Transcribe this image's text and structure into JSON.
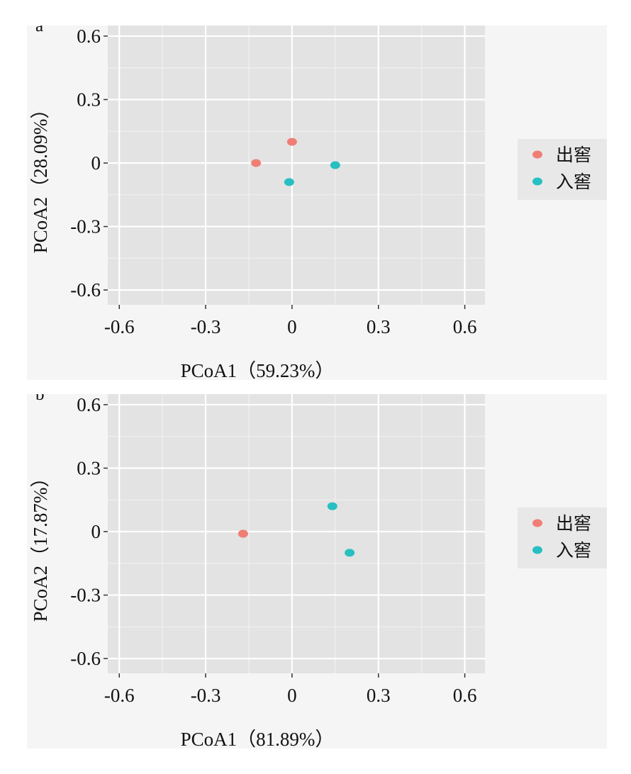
{
  "colors": {
    "out": "#f07e75",
    "in": "#27bfc2"
  },
  "chart_data": [
    {
      "type": "scatter",
      "panel_label": "a",
      "xlabel": "PCoA1（59.23%）",
      "ylabel": "PCoA2（28.09%）",
      "xlim": [
        -0.64,
        0.67
      ],
      "ylim": [
        -0.67,
        0.65
      ],
      "xticks": [
        -0.6,
        -0.3,
        0,
        0.3,
        0.6
      ],
      "yticks": [
        -0.6,
        -0.3,
        0,
        0.3,
        0.6
      ],
      "xtick_labels": [
        "-0.6",
        "-0.3",
        "0",
        "0.3",
        "0.6"
      ],
      "ytick_labels": [
        "-0.6",
        "-0.3",
        "0",
        "0.3",
        "0.6"
      ],
      "legend": [
        "出窖",
        "入窖"
      ],
      "series": [
        {
          "name": "出窖",
          "color": "#f07e75",
          "points": [
            [
              0.0,
              0.1
            ],
            [
              -0.125,
              0.0
            ]
          ]
        },
        {
          "name": "入窖",
          "color": "#27bfc2",
          "points": [
            [
              0.15,
              -0.01
            ],
            [
              -0.01,
              -0.09
            ]
          ]
        }
      ]
    },
    {
      "type": "scatter",
      "panel_label": "b",
      "xlabel": "PCoA1（81.89%）",
      "ylabel": "PCoA2（17.87%）",
      "xlim": [
        -0.64,
        0.67
      ],
      "ylim": [
        -0.67,
        0.65
      ],
      "xticks": [
        -0.6,
        -0.3,
        0,
        0.3,
        0.6
      ],
      "yticks": [
        -0.6,
        -0.3,
        0,
        0.3,
        0.6
      ],
      "xtick_labels": [
        "-0.6",
        "-0.3",
        "0",
        "0.3",
        "0.6"
      ],
      "ytick_labels": [
        "-0.6",
        "-0.3",
        "0",
        "0.3",
        "0.6"
      ],
      "legend": [
        "出窖",
        "入窖"
      ],
      "series": [
        {
          "name": "出窖",
          "color": "#f07e75",
          "points": [
            [
              -0.17,
              -0.01
            ],
            [
              -0.17,
              -0.01
            ]
          ]
        },
        {
          "name": "入窖",
          "color": "#27bfc2",
          "points": [
            [
              0.14,
              0.12
            ],
            [
              0.2,
              -0.1
            ]
          ]
        }
      ]
    }
  ]
}
